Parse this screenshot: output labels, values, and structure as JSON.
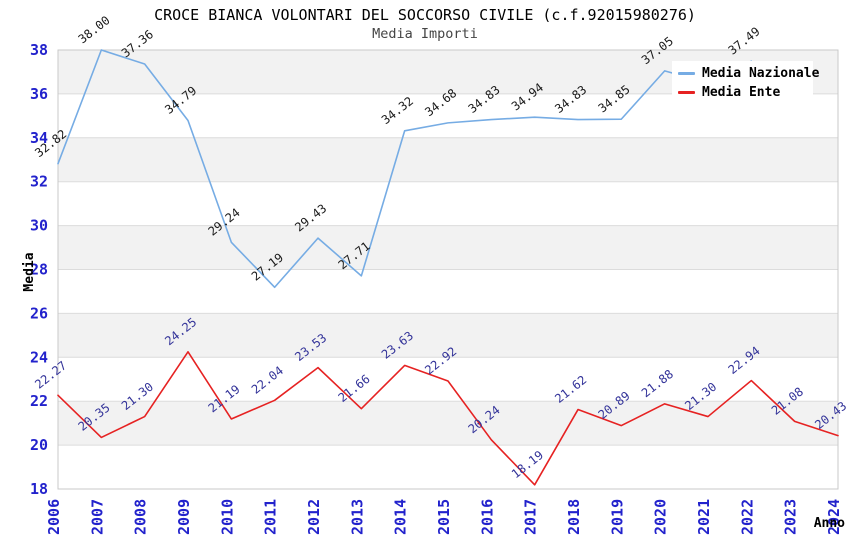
{
  "header": {
    "title": "CROCE BIANCA VOLONTARI DEL SOCCORSO CIVILE (c.f.92015980276)",
    "subtitle": "Media Importi"
  },
  "legend": {
    "items": [
      {
        "label": "Media Nazionale",
        "color": "#76ace4"
      },
      {
        "label": "Media Ente",
        "color": "#e62222"
      }
    ]
  },
  "axes": {
    "y_label": "Media",
    "x_label": "Anno",
    "y_ticks": [
      38,
      36,
      34,
      32,
      30,
      28,
      26,
      24,
      22,
      20,
      18
    ],
    "tick_color": "#2222cc"
  },
  "colors": {
    "band_fill": "#f2f2f2",
    "gridline": "#dcdcdc",
    "plot_border": "#c9c9c9",
    "blue_series_label": "#1a1a1a",
    "red_series_label": "#333399"
  },
  "chart_data": {
    "type": "line",
    "title": "CROCE BIANCA VOLONTARI DEL SOCCORSO CIVILE (c.f.92015980276)",
    "subtitle": "Media Importi",
    "xlabel": "Anno",
    "ylabel": "Media",
    "ylim": [
      18,
      38
    ],
    "grid": true,
    "legend_position": "top-right",
    "x": [
      2006,
      2007,
      2008,
      2009,
      2010,
      2011,
      2012,
      2013,
      2014,
      2015,
      2016,
      2017,
      2018,
      2019,
      2020,
      2021,
      2022,
      2023,
      2024
    ],
    "series": [
      {
        "name": "Media Nazionale",
        "color": "#76ace4",
        "label_color": "#1a1a1a",
        "values": [
          32.82,
          38.0,
          37.36,
          34.79,
          29.24,
          27.19,
          29.43,
          27.71,
          34.32,
          34.68,
          34.83,
          34.94,
          34.83,
          34.85,
          37.05,
          36.5,
          37.49
        ],
        "labels": [
          "32.82",
          "38.00",
          "37.36",
          "34.79",
          "29.24",
          "27.19",
          "29.43",
          "27.71",
          "34.32",
          "34.68",
          "34.83",
          "34.94",
          "34.83",
          "34.85",
          "37.05",
          null,
          "37.49"
        ],
        "hidden_label_note": "2021 point hidden behind legend (value estimated); series ends at 2022"
      },
      {
        "name": "Media Ente",
        "color": "#e62222",
        "label_color": "#333399",
        "values": [
          22.27,
          20.35,
          21.3,
          24.25,
          21.19,
          22.04,
          23.53,
          21.66,
          23.63,
          22.92,
          20.24,
          18.19,
          21.62,
          20.89,
          21.88,
          21.3,
          22.94,
          21.08,
          20.43
        ],
        "labels": [
          "22.27",
          "20.35",
          "21.30",
          "24.25",
          "21.19",
          "22.04",
          "23.53",
          "21.66",
          "23.63",
          "22.92",
          "20.24",
          "18.19",
          "21.62",
          "20.89",
          "21.88",
          "21.30",
          "22.94",
          "21.08",
          "20.43"
        ]
      }
    ],
    "shaded_bands": [
      [
        20,
        22
      ],
      [
        24,
        26
      ],
      [
        28,
        30
      ],
      [
        32,
        34
      ],
      [
        36,
        38
      ]
    ]
  }
}
